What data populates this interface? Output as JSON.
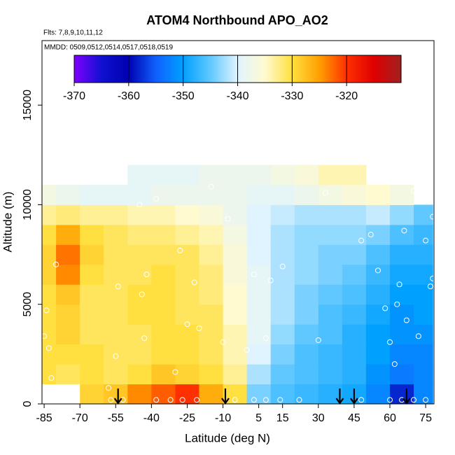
{
  "chart_data": {
    "type": "heatmap",
    "title": "ATOM4 Northbound APO_AO2",
    "subtitle": "Flts: 7,8,9,10,11,12",
    "annotation": "MMDD: 0509,0512,0514,0517,0518,0519",
    "x_label": "Latitude (deg N)",
    "y_label": "Altitude (m)",
    "xlim": [
      -85.9,
      78.5
    ],
    "ylim": [
      0,
      18240
    ],
    "xticks": [
      -85,
      -70,
      -55,
      -40,
      -25,
      -10,
      5,
      15,
      30,
      45,
      60,
      75
    ],
    "yticks": [
      0,
      5000,
      10000,
      15000
    ],
    "x_edges": [
      -86,
      -80,
      -70,
      -60,
      -50,
      -40,
      -30,
      -20,
      -10,
      0,
      10,
      20,
      30,
      40,
      50,
      60,
      70,
      78
    ],
    "y_edges": [
      0,
      1000,
      2000,
      3000,
      4000,
      5000,
      6000,
      7000,
      8000,
      9000,
      10000,
      11000,
      12000
    ],
    "z": [
      [
        null,
        null,
        -329,
        -328,
        -324,
        -322,
        -320,
        -326,
        -330,
        -344,
        -346,
        -347,
        -348,
        -349,
        -352,
        -358,
        -352
      ],
      [
        -330,
        -331,
        -330,
        -331,
        -330,
        -328,
        -329,
        -330,
        -333,
        -342,
        -345,
        -346,
        -347,
        -348,
        -351,
        -353,
        -352
      ],
      [
        -330,
        -330,
        -330,
        -331,
        -331,
        -330,
        -330,
        -331,
        -334,
        -340,
        -344,
        -346,
        -347,
        -348,
        -350,
        -352,
        -352
      ],
      [
        -330,
        -329,
        -331,
        -331,
        -331,
        -330,
        -330,
        -331,
        -334,
        -339,
        -343,
        -345,
        -346,
        -348,
        -350,
        -351,
        -351
      ],
      [
        -330,
        -329,
        -331,
        -331,
        -330,
        -330,
        -331,
        -331,
        -335,
        -339,
        -342,
        -344,
        -346,
        -347,
        -349,
        -351,
        -350
      ],
      [
        -330,
        -328,
        -331,
        -331,
        -330,
        -330,
        -331,
        -332,
        -335,
        -339,
        -342,
        -344,
        -345,
        -346,
        -348,
        -350,
        -350
      ],
      [
        -329,
        -324,
        -330,
        -331,
        -331,
        -330,
        -331,
        -332,
        -336,
        -339,
        -342,
        -343,
        -344,
        -345,
        -347,
        -349,
        -349
      ],
      [
        -329,
        -323,
        -329,
        -331,
        -331,
        -331,
        -331,
        -333,
        -336,
        -340,
        -342,
        -343,
        -344,
        -344,
        -346,
        -348,
        -348
      ],
      [
        -330,
        -326,
        -330,
        -331,
        -332,
        -332,
        -333,
        -334,
        -337,
        -340,
        -342,
        -343,
        -343,
        -343,
        -344,
        -346,
        -347
      ],
      [
        -333,
        -332,
        -333,
        -333,
        -334,
        -334,
        -335,
        -336,
        -338,
        -340,
        -341,
        -342,
        -342,
        -342,
        -341,
        -343,
        -345
      ],
      [
        -337,
        -338,
        -339,
        -339,
        -339,
        -338,
        -338,
        -338,
        -338,
        -339,
        -339,
        -338,
        -337,
        -336,
        -335,
        -337,
        null
      ],
      [
        null,
        null,
        null,
        null,
        -339,
        -339,
        -339,
        -338,
        -338,
        -338,
        -337,
        -336,
        -334,
        -334,
        null,
        null,
        null
      ]
    ],
    "colorbar_lim": [
      -370,
      -310
    ],
    "colorbar_ticks": [
      -370,
      -360,
      -350,
      -340,
      -330,
      -320
    ],
    "colors": [
      "#8000ff",
      "#1010d0",
      "#0000b0",
      "#1060ff",
      "#00a0ff",
      "#60c8ff",
      "#e0f4ff",
      "#fffad0",
      "#ffe040",
      "#ffa000",
      "#ff3000",
      "#e00000",
      "#a02020"
    ],
    "points": {
      "x": [
        -85,
        -84,
        -83,
        -82,
        -80,
        -58,
        -55,
        -54,
        -45,
        -43,
        -44,
        -42,
        -38,
        -30,
        -28,
        -25,
        -22,
        -20,
        -15,
        -10,
        -8,
        0,
        3,
        8,
        10,
        15,
        30,
        33,
        48,
        52,
        55,
        58,
        60,
        62,
        63,
        64,
        66,
        67,
        70,
        72,
        75,
        77,
        78,
        78,
        -57,
        -52,
        -38,
        -32,
        -27,
        -21,
        -5,
        3,
        8,
        14,
        22,
        48,
        60,
        65,
        70,
        75
      ],
      "y": [
        3400,
        4700,
        2800,
        1300,
        7000,
        800,
        2400,
        5900,
        10000,
        3300,
        5500,
        6500,
        10300,
        1600,
        7700,
        4000,
        6100,
        3800,
        10900,
        3100,
        9300,
        2700,
        6500,
        3300,
        6200,
        6900,
        3200,
        10600,
        8200,
        8500,
        6700,
        4800,
        3100,
        2000,
        5000,
        6000,
        8700,
        4200,
        10700,
        3400,
        8200,
        5900,
        6300,
        9400,
        200,
        200,
        200,
        200,
        200,
        200,
        200,
        200,
        200,
        200,
        200,
        200,
        200,
        200,
        200,
        200
      ]
    },
    "arrows_x": [
      -54,
      -9,
      39,
      45,
      67
    ]
  }
}
